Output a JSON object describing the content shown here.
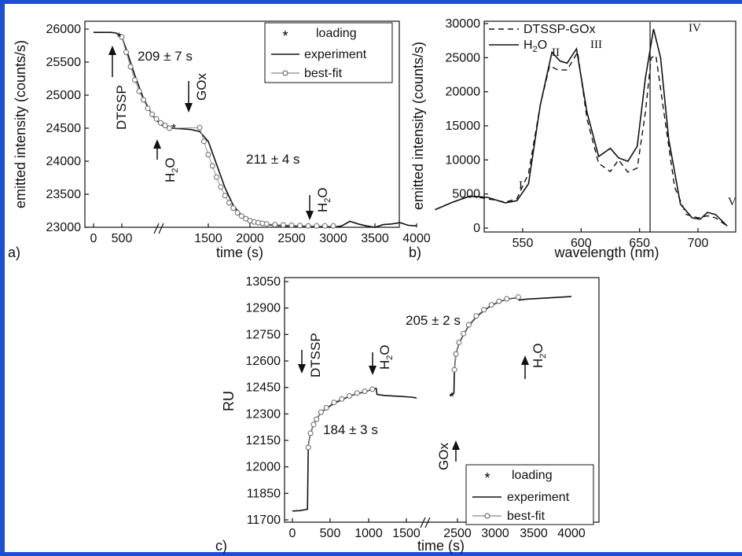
{
  "chart_data": [
    {
      "panel": "a)",
      "type": "line",
      "xlabel": "time (s)",
      "ylabel": "emitted intensity (counts/s)",
      "x_ticks": [
        "0",
        "500",
        "1500",
        "2000",
        "2500",
        "3000",
        "3500",
        "4000"
      ],
      "y_ticks": [
        "23000",
        "23500",
        "24000",
        "24500",
        "25000",
        "25500",
        "26000"
      ],
      "ylim": [
        22900,
        26100
      ],
      "axis_break": true,
      "legend": {
        "position": "top-right",
        "entries": [
          "loading",
          "experiment",
          "best-fit"
        ]
      },
      "annotations": [
        "209 ± 7 s",
        "211 ± 4 s",
        "DTSSP",
        "GOx",
        "H2O",
        "H2O"
      ],
      "series": [
        {
          "name": "experiment",
          "x": [
            0,
            150,
            300,
            400,
            500,
            550,
            650,
            750,
            850,
            950,
            1050,
            1200,
            1300,
            1400,
            1500,
            1600,
            1700,
            1800,
            1900,
            2000,
            2100,
            2200,
            2400,
            2600,
            2800,
            3000,
            3100,
            3200,
            3300,
            3400,
            3500,
            3600,
            3700,
            3800,
            3900,
            4000
          ],
          "y": [
            25950,
            25950,
            25950,
            25940,
            25880,
            25700,
            25300,
            24950,
            24700,
            24550,
            24500,
            24490,
            24480,
            24450,
            24300,
            23950,
            23600,
            23330,
            23180,
            23100,
            23060,
            23040,
            23020,
            23020,
            23010,
            23000,
            23020,
            23090,
            23050,
            23020,
            23000,
            23040,
            23050,
            23070,
            23030,
            23020
          ]
        },
        {
          "name": "best-fit",
          "x": [
            500,
            550,
            600,
            650,
            700,
            750,
            800,
            850,
            900,
            950,
            1000,
            1050,
            1400,
            1450,
            1500,
            1550,
            1600,
            1650,
            1700,
            1750,
            1800,
            1850,
            1900,
            1950,
            2000,
            2050,
            2100,
            2150,
            2200,
            2300,
            2400,
            2500,
            2600,
            2700,
            2800,
            2900,
            3000
          ],
          "y": [
            25880,
            25650,
            25430,
            25230,
            25060,
            24930,
            24800,
            24710,
            24640,
            24580,
            24540,
            24500,
            24510,
            24300,
            24100,
            23930,
            23760,
            23610,
            23480,
            23370,
            23290,
            23220,
            23170,
            23130,
            23100,
            23080,
            23070,
            23060,
            23050,
            23040,
            23035,
            23030,
            23025,
            23020,
            23020,
            23020,
            23020
          ]
        },
        {
          "name": "loading",
          "x": [
            450,
            1100
          ],
          "y": [
            25900,
            24520
          ]
        }
      ]
    },
    {
      "panel": "b)",
      "type": "line",
      "xlabel": "wavelength (nm)",
      "ylabel": "emitted intensity (counts/s)",
      "x_ticks": [
        "550",
        "600",
        "650",
        "700"
      ],
      "y_ticks": [
        "0",
        "5000",
        "10000",
        "15000",
        "20000",
        "25000",
        "30000"
      ],
      "xlim": [
        475,
        725
      ],
      "ylim": [
        -1000,
        30500
      ],
      "vertical_marker": 659,
      "legend": {
        "position": "top-left",
        "entries": [
          "DTSSP-GOx",
          "H2O"
        ]
      },
      "peak_labels": [
        "I",
        "II",
        "III",
        "IV",
        "V"
      ],
      "series": [
        {
          "name": "DTSSP-GOx",
          "x": [
            475,
            490,
            505,
            520,
            535,
            545,
            555,
            565,
            573,
            580,
            588,
            597,
            605,
            615,
            625,
            632,
            640,
            648,
            655,
            660,
            664,
            670,
            680,
            690,
            700,
            708,
            715,
            725
          ],
          "y": [
            2700,
            3800,
            4700,
            4300,
            3800,
            4300,
            8000,
            18000,
            23800,
            23200,
            23200,
            25800,
            16000,
            9500,
            8300,
            10000,
            8200,
            8800,
            17000,
            25000,
            25300,
            18000,
            6000,
            2000,
            1500,
            1800,
            1500,
            300
          ]
        },
        {
          "name": "H2O",
          "x": [
            475,
            490,
            505,
            520,
            535,
            545,
            555,
            565,
            575,
            582,
            588,
            596,
            605,
            615,
            625,
            632,
            640,
            648,
            655,
            662,
            668,
            675,
            685,
            695,
            702,
            708,
            715,
            725
          ],
          "y": [
            2700,
            3800,
            4700,
            4500,
            3700,
            4000,
            6500,
            18000,
            25800,
            24500,
            24200,
            26300,
            17000,
            10500,
            11700,
            10300,
            9800,
            12000,
            22000,
            29200,
            25000,
            13000,
            3500,
            1500,
            1300,
            2300,
            2000,
            300
          ]
        }
      ]
    },
    {
      "panel": "c)",
      "type": "line",
      "xlabel": "time (s)",
      "ylabel": "RU",
      "x_ticks": [
        "0",
        "500",
        "1000",
        "1500",
        "2500",
        "3000",
        "3500",
        "4000"
      ],
      "y_ticks": [
        "11700",
        "11850",
        "12000",
        "12150",
        "12300",
        "12450",
        "12600",
        "12750",
        "12900",
        "13050"
      ],
      "ylim": [
        11700,
        13050
      ],
      "axis_break": true,
      "legend": {
        "position": "bottom-right",
        "entries": [
          "loading",
          "experiment",
          "best-fit"
        ]
      },
      "annotations": [
        "184 ± 3 s",
        "205 ± 2 s",
        "DTSSP",
        "GOx",
        "H2O",
        "H2O"
      ],
      "series": [
        {
          "name": "experiment",
          "x": [
            0,
            100,
            200,
            210,
            240,
            280,
            320,
            380,
            450,
            550,
            650,
            750,
            850,
            950,
            1050,
            1100,
            1110,
            1200,
            1400,
            1600,
            1700,
            2350,
            2400,
            2430,
            2440,
            2470,
            2520,
            2580,
            2650,
            2750,
            2850,
            2950,
            3050,
            3150,
            3300,
            3310,
            3400,
            3600,
            3800,
            4000
          ],
          "y": [
            11750,
            11752,
            11760,
            12120,
            12190,
            12240,
            12270,
            12310,
            12330,
            12360,
            12380,
            12400,
            12415,
            12425,
            12440,
            12445,
            12410,
            12405,
            12400,
            12395,
            12390,
            12405,
            12410,
            12420,
            12550,
            12640,
            12700,
            12750,
            12800,
            12850,
            12885,
            12915,
            12935,
            12950,
            12960,
            12945,
            12950,
            12955,
            12960,
            12965
          ]
        },
        {
          "name": "best-fit",
          "x": [
            210,
            240,
            280,
            320,
            380,
            450,
            550,
            650,
            750,
            850,
            950,
            1050,
            2440,
            2470,
            2520,
            2580,
            2650,
            2750,
            2850,
            2950,
            3050,
            3150,
            3300
          ],
          "y": [
            12110,
            12190,
            12240,
            12270,
            12310,
            12335,
            12365,
            12385,
            12402,
            12418,
            12428,
            12440,
            12550,
            12640,
            12705,
            12755,
            12805,
            12855,
            12890,
            12918,
            12938,
            12952,
            12962
          ]
        },
        {
          "name": "loading",
          "x": [
            2390
          ],
          "y": [
            12405
          ]
        }
      ]
    }
  ],
  "text": {
    "a": {
      "ylabel": "emitted intensity (counts/s)",
      "xlabel": "time (s)",
      "label": "a)",
      "fit1": "209 ± 7 s",
      "fit2": "211 ± 4 s",
      "dtssp": "DTSSP",
      "gox": "GOx",
      "h2o": "H",
      "o": "O",
      "sub": "2",
      "leg_loading": "loading",
      "leg_experiment": "experiment",
      "leg_bestfit": "best-fit",
      "star": "*"
    },
    "b": {
      "ylabel": "emitted intensity (counts/s)",
      "xlabel": "wavelength (nm)",
      "label": "b)",
      "leg1": "DTSSP-GOx",
      "leg2_h": "H",
      "leg2_sub": "2",
      "leg2_o": "O",
      "p1": "I",
      "p2": "II",
      "p3": "III",
      "p4": "IV",
      "p5": "V"
    },
    "c": {
      "ylabel": "RU",
      "xlabel": "time (s)",
      "label": "c)",
      "fit1": "184 ± 3 s",
      "fit2": "205 ± 2 s",
      "dtssp": "DTSSP",
      "gox": "GOx",
      "h2o": "H",
      "o": "O",
      "sub": "2",
      "leg_loading": "loading",
      "leg_experiment": "experiment",
      "leg_bestfit": "best-fit",
      "star": "*"
    }
  }
}
